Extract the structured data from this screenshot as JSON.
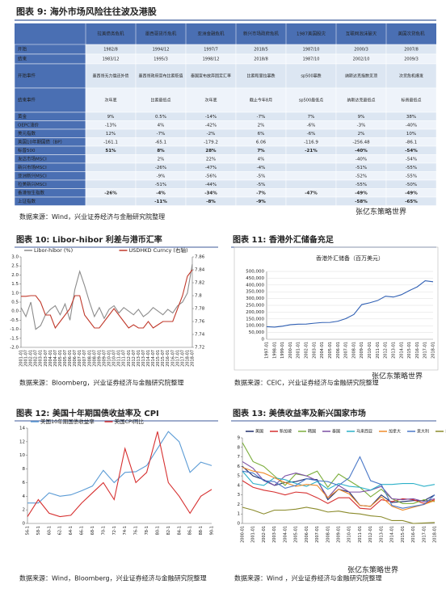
{
  "table": {
    "title": "图表 9: 海外市场风险往往波及港股",
    "columns": [
      "拉美债务危机",
      "墨西哥货币危机",
      "亚洲金融危机",
      "新兴市场政府危机",
      "1987美国股灾",
      "互联网泡沫破灭",
      "美国次贷危机"
    ],
    "rows": [
      {
        "label": "开始",
        "cells": [
          "1982/8",
          "1994/12",
          "1997/7",
          "2018/5",
          "1987/10",
          "2000/3",
          "2007/8"
        ]
      },
      {
        "label": "结束",
        "cells": [
          "1983/12",
          "1995/3",
          "1998/12",
          "2018/8",
          "1987/10",
          "2002/10",
          "2009/3"
        ]
      },
      {
        "label": "开始事件",
        "cells": [
          "墨西哥无力偿还外债",
          "墨西哥政府宣布比索贬值",
          "泰国宣布放弃固定汇率",
          "比索和里拉暴跌",
          "sp500暴跌",
          "纳斯达克指数见顶",
          "次贷危机爆发"
        ]
      },
      {
        "label": "结束事件",
        "cells": [
          "次年底",
          "比索最低点",
          "次年底",
          "截止今年8月",
          "sp500最低点",
          "纳斯达克最低点",
          "标普最低点"
        ]
      },
      {
        "label": "黄金",
        "cells": [
          "9%",
          "0.5%",
          "-14%",
          "-7%",
          "7%",
          "9%",
          "38%"
        ]
      },
      {
        "label": "OEPC油价",
        "cells": [
          "-13%",
          "4%",
          "-42%",
          "2%",
          "-6%",
          "-3%",
          "-40%"
        ]
      },
      {
        "label": "美元指数",
        "cells": [
          "12%",
          "-7%",
          "-2%",
          "6%",
          "-6%",
          "2%",
          "10%"
        ]
      },
      {
        "label": "美国10年期国债（BP）",
        "cells": [
          "-161.1",
          "-65.1",
          "-179.2",
          "6.06",
          "-116.9",
          "-256.48",
          "-86.1"
        ]
      },
      {
        "label": "标普500",
        "color": "#d63a2f",
        "cells": [
          "51%",
          "8%",
          "28%",
          "7%",
          "-21%",
          "-40%",
          "-54%"
        ]
      },
      {
        "label": "发达市场MSCI",
        "cells": [
          null,
          "2%",
          "22%",
          "4%",
          null,
          "-40%",
          "-54%"
        ]
      },
      {
        "label": "新兴市场MSCI",
        "cells": [
          null,
          "-26%",
          "-47%",
          "-4%",
          null,
          "-51%",
          "-55%"
        ]
      },
      {
        "label": "亚洲新兴MSCI",
        "cells": [
          null,
          "-9%",
          "-56%",
          "-5%",
          null,
          "-52%",
          "-55%"
        ]
      },
      {
        "label": "拉美新兴MSCI",
        "cells": [
          null,
          "-51%",
          "-44%",
          "-5%",
          null,
          "-55%",
          "-50%"
        ]
      },
      {
        "label": "香港恒生指数",
        "color": "#d63a2f",
        "cells": [
          "-26%",
          "-4%",
          "-34%",
          "-7%",
          "-47%",
          "-49%",
          "-49%"
        ]
      },
      {
        "label": "上证指数",
        "color": "#d63a2f",
        "cells": [
          null,
          "-11%",
          "-8%",
          "-9%",
          null,
          "-58%",
          "-65%"
        ]
      }
    ],
    "source": "数据来源：Wind，兴业证券经济与金融研究院整理"
  },
  "watermark": "张亿东策略世界",
  "chart_data": [
    {
      "type": "line",
      "title": "图表 10:  Libor-hibor 利差与港币汇率",
      "categories": [
        "2001-01",
        "2001-07",
        "2002-01",
        "2002-07",
        "2003-01",
        "2003-07",
        "2004-01",
        "2004-07",
        "2005-01",
        "2005-07",
        "2006-01",
        "2006-07",
        "2007-01",
        "2007-07",
        "2008-01",
        "2008-07",
        "2009-01",
        "2009-07",
        "2010-01",
        "2010-07",
        "2011-01",
        "2011-07",
        "2012-01",
        "2012-07",
        "2013-01",
        "2013-07",
        "2014-01",
        "2014-07",
        "2015-01",
        "2015-07",
        "2016-01",
        "2016-07",
        "2017-01",
        "2017-07",
        "2018-01",
        "2018-07"
      ],
      "series": [
        {
          "name": "Libor-hibor (%)",
          "color": "#8c8c8c",
          "values": [
            0.2,
            -0.3,
            0.5,
            -1.0,
            -0.8,
            -0.2,
            0.1,
            0.3,
            -0.2,
            0.4,
            -0.5,
            1.2,
            2.2,
            1.4,
            0.5,
            -0.3,
            0.2,
            -0.4,
            0.1,
            0.3,
            -0.1,
            0.2,
            0.0,
            -0.2,
            0.1,
            -0.3,
            -0.1,
            0.2,
            0.0,
            -0.2,
            0.1,
            -0.1,
            0.3,
            0.5,
            1.0,
            2.6
          ]
        },
        {
          "name": "USDHKD Curncy (右轴)",
          "color": "#c0392b",
          "axis": "y2",
          "values": [
            7.799,
            7.799,
            7.8,
            7.8,
            7.79,
            7.77,
            7.77,
            7.75,
            7.76,
            7.77,
            7.78,
            7.8,
            7.8,
            7.77,
            7.76,
            7.75,
            7.75,
            7.76,
            7.77,
            7.78,
            7.77,
            7.76,
            7.75,
            7.755,
            7.75,
            7.75,
            7.76,
            7.75,
            7.755,
            7.76,
            7.76,
            7.76,
            7.78,
            7.8,
            7.83,
            7.84
          ]
        }
      ],
      "ylim": [
        -2,
        3
      ],
      "yticks": [
        {
          "value": -2,
          "label": "-2.0"
        },
        -1.5,
        {
          "value": -1,
          "label": "-1.0"
        },
        -0.5,
        {
          "value": 0,
          "label": "0.0"
        },
        0.5,
        {
          "value": 1,
          "label": "1.0"
        },
        1.5,
        {
          "value": 2,
          "label": "2.0"
        },
        2.5,
        {
          "value": 3,
          "label": "3.0"
        }
      ],
      "y2lim": [
        7.72,
        7.86
      ],
      "y2ticks": [
        7.72,
        7.74,
        7.76,
        7.78,
        7.8,
        7.82,
        7.84,
        7.86
      ],
      "legend": "top",
      "grid": false,
      "source": "数据来源：Bloomberg，兴业证券经济与金融研究院整理"
    },
    {
      "type": "line",
      "title": "图表 11:   香港外汇储备充足",
      "subtitle": "香港外汇储备（百万美元）",
      "categories": [
        "1997-01",
        "1998-01",
        "1999-01",
        "2000-01",
        "2001-01",
        "2002-01",
        "2003-01",
        "2004-01",
        "2005-01",
        "2006-01",
        "2007-01",
        "2008-01",
        "2009-01",
        "2010-01",
        "2011-01",
        "2012-01",
        "2013-01",
        "2014-01",
        "2015-01",
        "2016-01",
        "2017-01",
        "2018-01"
      ],
      "series": [
        {
          "name": "香港外汇储备",
          "color": "#2f5fb3",
          "values": [
            92800,
            89600,
            96300,
            107600,
            111200,
            111900,
            118400,
            123600,
            124300,
            133200,
            152700,
            182500,
            255800,
            268700,
            285400,
            317300,
            311200,
            328500,
            358800,
            386200,
            431400,
            424000
          ]
        }
      ],
      "ylim": [
        0,
        500000
      ],
      "yticks": [
        0,
        {
          "value": 50000,
          "label": "50,000"
        },
        {
          "value": 100000,
          "label": "100,000"
        },
        {
          "value": 150000,
          "label": "150,000"
        },
        {
          "value": 200000,
          "label": "200,000"
        },
        {
          "value": 250000,
          "label": "250,000"
        },
        {
          "value": 300000,
          "label": "300,000"
        },
        {
          "value": 350000,
          "label": "350,000"
        },
        {
          "value": 400000,
          "label": "400,000"
        },
        {
          "value": 450000,
          "label": "450,000"
        },
        {
          "value": 500000,
          "label": "500,000"
        }
      ],
      "grid": true,
      "source": "数据来源：CEIC，兴业证券经济与金融研究院整理"
    },
    {
      "type": "line",
      "title": "图表 12:  美国十年期国债收益率及 CPI",
      "categories": [
        "56-1",
        "58-1",
        "60-1",
        "62-1",
        "64-1",
        "66-1",
        "68-1",
        "70-1",
        "72-1",
        "74-1",
        "76-1",
        "78-1",
        "80-1",
        "82-1",
        "84-1",
        "86-1",
        "88-1",
        "90-1"
      ],
      "series": [
        {
          "name": "美国10年期国债收益率",
          "color": "#5b9bd5",
          "values": [
            3,
            3,
            4.5,
            4,
            4.2,
            4.8,
            5.5,
            7.8,
            6,
            7.5,
            7.6,
            8.5,
            11,
            13.5,
            12,
            7.5,
            9,
            8.5
          ]
        },
        {
          "name": "美国CPI同比",
          "color": "#d62f2f",
          "values": [
            1,
            3.5,
            1.5,
            1,
            1.2,
            3,
            4.5,
            6,
            3.5,
            11,
            6,
            7.5,
            13.5,
            6,
            4,
            1.5,
            4,
            5
          ]
        }
      ],
      "ylim": [
        0,
        14
      ],
      "yticks": [
        0,
        2,
        4,
        6,
        8,
        10,
        12,
        14
      ],
      "legend": "top",
      "grid": false,
      "source": "数据来源：Wind，Bloomberg，兴业证券经济与金融研究院整理"
    },
    {
      "type": "line",
      "title": "图表 13:   美债收益率及新兴国家市场",
      "categories": [
        "2000-01",
        "2001-01",
        "2002-01",
        "2003-01",
        "2004-01",
        "2005-01",
        "2006-01",
        "2007-01",
        "2008-01",
        "2009-01",
        "2010-01",
        "2011-01",
        "2012-01",
        "2013-01",
        "2014-01",
        "2015-01",
        "2016-01",
        "2017-01",
        "2018-01"
      ],
      "series": [
        {
          "name": "美国",
          "color": "#1f2d6b",
          "values": [
            6.0,
            5.0,
            4.6,
            4.0,
            4.3,
            4.4,
            4.7,
            4.6,
            2.5,
            3.6,
            3.3,
            1.9,
            1.8,
            3.0,
            2.2,
            2.3,
            2.4,
            2.4,
            3.0
          ]
        },
        {
          "name": "新加坡",
          "color": "#d62f2f",
          "values": [
            4.5,
            3.8,
            3.5,
            3.3,
            3.0,
            3.3,
            3.2,
            2.7,
            2.1,
            2.7,
            2.7,
            1.6,
            1.5,
            2.5,
            2.3,
            2.6,
            2.5,
            2.1,
            2.5
          ]
        },
        {
          "name": "韩国",
          "color": "#7cae3c",
          "values": [
            8.5,
            6.5,
            6.0,
            5.0,
            4.0,
            5.2,
            5.0,
            5.5,
            3.8,
            5.2,
            4.5,
            3.8,
            2.8,
            3.6,
            2.6,
            2.1,
            2.1,
            2.5,
            2.3
          ]
        },
        {
          "name": "泰国",
          "color": "#7b4fa3",
          "values": [
            6.5,
            5.8,
            4.5,
            4.0,
            5.0,
            5.3,
            5.0,
            4.5,
            2.7,
            4.0,
            3.3,
            3.3,
            3.5,
            3.9,
            2.6,
            2.5,
            2.6,
            2.3,
            2.6
          ]
        },
        {
          "name": "马来西亚",
          "color": "#2bb0c8",
          "values": [
            5.5,
            4.2,
            4.0,
            4.8,
            4.6,
            4.2,
            3.9,
            4.4,
            3.6,
            4.2,
            3.9,
            3.8,
            3.5,
            4.1,
            4.1,
            4.2,
            4.2,
            3.9,
            4.1
          ]
        },
        {
          "name": "加拿大",
          "color": "#f08c2a",
          "values": [
            5.9,
            5.5,
            5.3,
            4.8,
            4.3,
            3.9,
            4.1,
            4.0,
            2.7,
            3.6,
            3.1,
            1.9,
            1.8,
            2.8,
            1.8,
            1.4,
            1.7,
            2.0,
            2.4
          ]
        },
        {
          "name": "意大利",
          "color": "#4a78c8",
          "values": [
            5.5,
            5.3,
            4.5,
            4.4,
            3.7,
            4.0,
            4.7,
            4.5,
            4.4,
            4.0,
            4.8,
            7.0,
            4.5,
            4.1,
            1.9,
            1.6,
            1.8,
            2.0,
            3.0
          ]
        },
        {
          "name": "日本",
          "color": "#8a8a2a",
          "values": [
            1.7,
            1.4,
            1.0,
            1.4,
            1.4,
            1.5,
            1.7,
            1.5,
            1.2,
            1.3,
            1.1,
            1.0,
            0.8,
            0.7,
            0.3,
            0.3,
            0.0,
            0.05,
            0.1
          ]
        }
      ],
      "ylim": [
        0,
        9
      ],
      "yticks": [
        0,
        1,
        2,
        3,
        4,
        5,
        6,
        7,
        8,
        9
      ],
      "legend": "top",
      "grid": false,
      "source": "数据来源：Wind ，兴业证券经济与金融研究院整理"
    }
  ]
}
